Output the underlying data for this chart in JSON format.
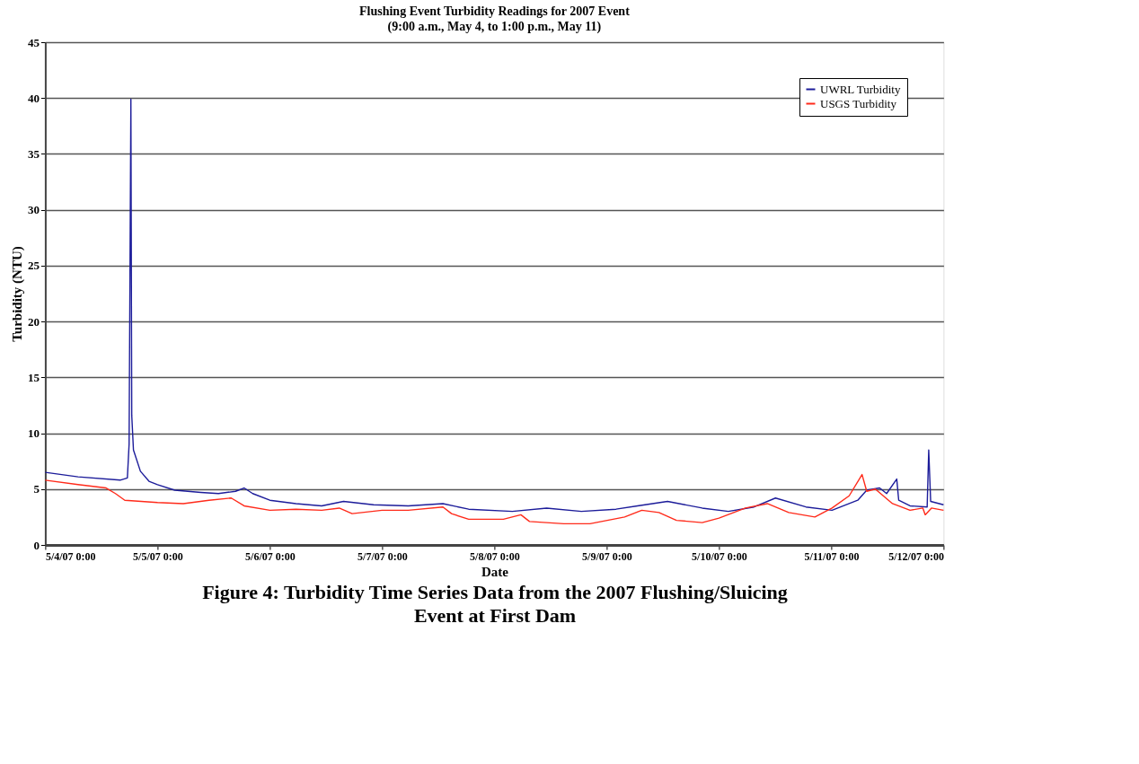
{
  "chart_data": {
    "type": "line",
    "title": "Flushing Event Turbidity Readings for 2007 Event",
    "subtitle": "(9:00 a.m., May 4, to 1:00 p.m., May 11)",
    "xlabel": "Date",
    "ylabel": "Turbidity (NTU)",
    "xlim": [
      "2007-05-04T00:00",
      "2007-05-12T00:00"
    ],
    "xticks": [
      {
        "value": "2007-05-04T00:00",
        "label": "5/4/07 0:00"
      },
      {
        "value": "2007-05-05T00:00",
        "label": "5/5/07 0:00"
      },
      {
        "value": "2007-05-06T00:00",
        "label": "5/6/07 0:00"
      },
      {
        "value": "2007-05-07T00:00",
        "label": "5/7/07 0:00"
      },
      {
        "value": "2007-05-08T00:00",
        "label": "5/8/07 0:00"
      },
      {
        "value": "2007-05-09T00:00",
        "label": "5/9/07 0:00"
      },
      {
        "value": "2007-05-10T00:00",
        "label": "5/10/07 0:00"
      },
      {
        "value": "2007-05-11T00:00",
        "label": "5/11/07 0:00"
      },
      {
        "value": "2007-05-12T00:00",
        "label": "5/12/07 0:00"
      }
    ],
    "ylim": [
      0,
      45
    ],
    "yticks": [
      0,
      5,
      10,
      15,
      20,
      25,
      30,
      35,
      40,
      45
    ],
    "grid": "y",
    "legend": "top right",
    "marker": "none",
    "line_style": "solid",
    "series": [
      {
        "name": "UWRL Turbidity",
        "color": "#1c1c9a",
        "x": [
          "2007-05-04T00:00",
          "2007-05-04T07:00",
          "2007-05-04T16:00",
          "2007-05-04T17:33",
          "2007-05-04T17:55",
          "2007-05-04T18:18",
          "2007-05-04T18:29",
          "2007-05-04T18:51",
          "2007-05-04T20:20",
          "2007-05-04T22:10",
          "2007-05-05T00:00",
          "2007-05-05T03:40",
          "2007-05-05T09:15",
          "2007-05-05T13:00",
          "2007-05-05T16:40",
          "2007-05-05T18:30",
          "2007-05-05T20:20",
          "2007-05-06T00:00",
          "2007-05-06T05:35",
          "2007-05-06T11:05",
          "2007-05-06T15:45",
          "2007-05-06T22:10",
          "2007-05-07T05:35",
          "2007-05-07T13:00",
          "2007-05-07T18:30",
          "2007-05-08T03:50",
          "2007-05-08T11:10",
          "2007-05-08T18:35",
          "2007-05-09T02:00",
          "2007-05-09T06:35",
          "2007-05-09T13:00",
          "2007-05-09T20:25",
          "2007-05-10T02:00",
          "2007-05-10T07:30",
          "2007-05-10T12:05",
          "2007-05-10T18:35",
          "2007-05-11T00:10",
          "2007-05-11T05:40",
          "2007-05-11T07:35",
          "2007-05-11T10:20",
          "2007-05-11T11:50",
          "2007-05-11T14:00",
          "2007-05-11T14:25",
          "2007-05-11T16:50",
          "2007-05-11T20:30",
          "2007-05-11T20:50",
          "2007-05-11T21:15",
          "2007-05-12T00:00"
        ],
        "values": [
          6.5,
          6.1,
          5.8,
          6.0,
          9.0,
          39.9,
          11.6,
          8.5,
          6.6,
          5.7,
          5.4,
          4.9,
          4.7,
          4.6,
          4.8,
          5.1,
          4.6,
          4.0,
          3.7,
          3.5,
          3.9,
          3.6,
          3.5,
          3.7,
          3.2,
          3.0,
          3.3,
          3.0,
          3.2,
          3.5,
          3.9,
          3.3,
          3.0,
          3.4,
          4.2,
          3.4,
          3.1,
          4.0,
          4.9,
          5.1,
          4.6,
          5.9,
          4.0,
          3.5,
          3.4,
          8.5,
          3.9,
          3.6
        ]
      },
      {
        "name": "USGS Turbidity",
        "color": "#ff2a1a",
        "x": [
          "2007-05-04T00:00",
          "2007-05-04T07:00",
          "2007-05-04T13:00",
          "2007-05-04T15:00",
          "2007-05-04T17:00",
          "2007-05-05T00:00",
          "2007-05-05T05:30",
          "2007-05-05T11:00",
          "2007-05-05T15:45",
          "2007-05-05T18:30",
          "2007-05-06T00:00",
          "2007-05-06T05:35",
          "2007-05-06T11:05",
          "2007-05-06T14:50",
          "2007-05-06T17:35",
          "2007-05-07T00:00",
          "2007-05-07T05:35",
          "2007-05-07T13:00",
          "2007-05-07T14:50",
          "2007-05-07T18:30",
          "2007-05-08T01:55",
          "2007-05-08T05:40",
          "2007-05-08T07:30",
          "2007-05-08T14:50",
          "2007-05-08T20:25",
          "2007-05-09T03:50",
          "2007-05-09T07:30",
          "2007-05-09T11:10",
          "2007-05-09T14:55",
          "2007-05-09T20:25",
          "2007-05-10T00:00",
          "2007-05-10T05:40",
          "2007-05-10T10:20",
          "2007-05-10T14:55",
          "2007-05-10T20:30",
          "2007-05-11T00:10",
          "2007-05-11T03:50",
          "2007-05-11T06:35",
          "2007-05-11T07:35",
          "2007-05-11T09:25",
          "2007-05-11T13:05",
          "2007-05-11T16:50",
          "2007-05-11T19:35",
          "2007-05-11T20:05",
          "2007-05-11T21:25",
          "2007-05-12T00:00"
        ],
        "values": [
          5.8,
          5.4,
          5.1,
          4.6,
          4.0,
          3.8,
          3.7,
          4.0,
          4.2,
          3.5,
          3.1,
          3.2,
          3.1,
          3.3,
          2.8,
          3.1,
          3.1,
          3.4,
          2.8,
          2.3,
          2.3,
          2.7,
          2.1,
          1.9,
          1.9,
          2.5,
          3.1,
          2.9,
          2.2,
          2.0,
          2.4,
          3.3,
          3.7,
          2.9,
          2.5,
          3.3,
          4.4,
          6.3,
          4.8,
          5.0,
          3.7,
          3.1,
          3.3,
          2.7,
          3.3,
          3.1
        ]
      }
    ],
    "annotations": [
      "Figure 4:  Turbidity Time Series Data from the 2007 Flushing/Sluicing Event at First Dam"
    ]
  }
}
